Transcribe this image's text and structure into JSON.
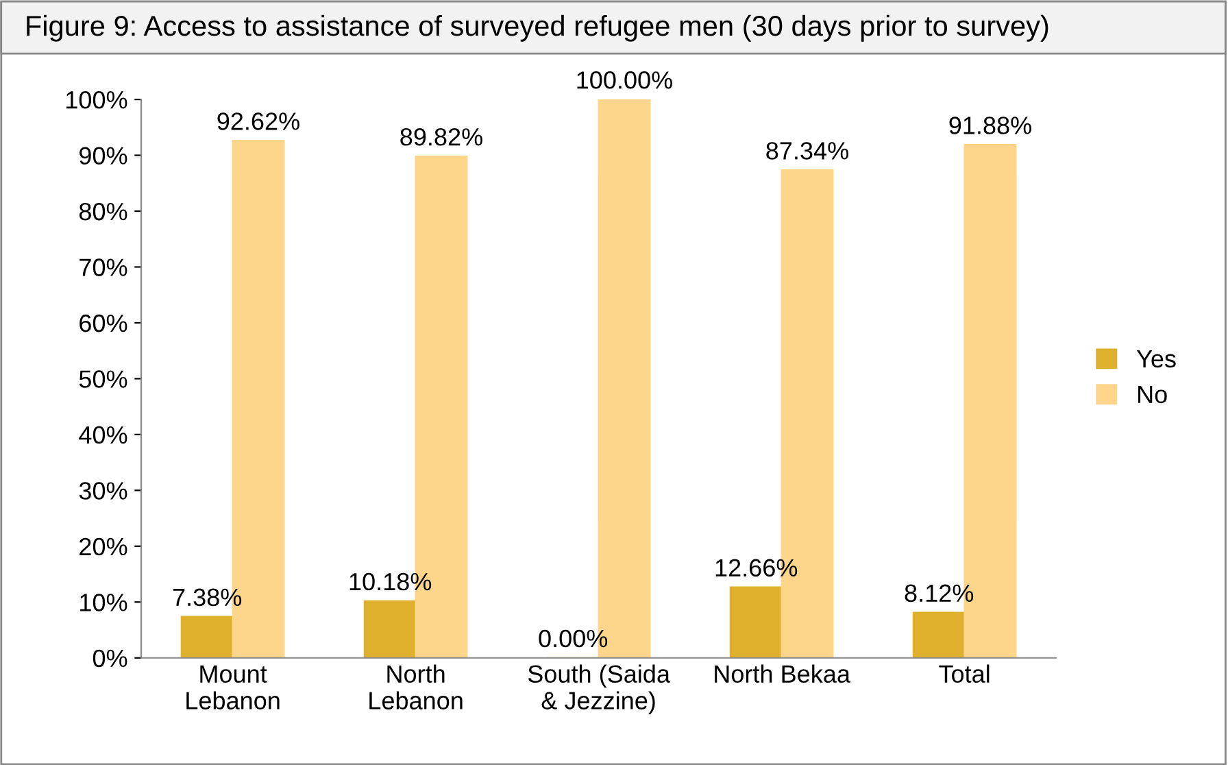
{
  "chart_data": {
    "type": "bar",
    "title": "Figure 9: Access to assistance of surveyed refugee men (30 days prior to survey)",
    "categories": [
      "Mount\nLebanon",
      "North\nLebanon",
      "South (Saida\n& Jezzine)",
      "North Bekaa",
      "Total"
    ],
    "series": [
      {
        "name": "Yes",
        "color": "#deb02c",
        "values": [
          7.38,
          10.18,
          0.0,
          12.66,
          8.12
        ],
        "value_labels": [
          "7.38%",
          "10.18%",
          "0.00%",
          "12.66%",
          "8.12%"
        ]
      },
      {
        "name": "No",
        "color": "#fdd58b",
        "values": [
          92.62,
          89.82,
          100.0,
          87.34,
          91.88
        ],
        "value_labels": [
          "92.62%",
          "89.82%",
          "100.00%",
          "87.34%",
          "91.88%"
        ]
      }
    ],
    "ylim": [
      0,
      100
    ],
    "yticks": [
      {
        "value": 0,
        "label": "0%"
      },
      {
        "value": 10,
        "label": "10%"
      },
      {
        "value": 20,
        "label": "20%"
      },
      {
        "value": 30,
        "label": "30%"
      },
      {
        "value": 40,
        "label": "40%"
      },
      {
        "value": 50,
        "label": "50%"
      },
      {
        "value": 60,
        "label": "60%"
      },
      {
        "value": 70,
        "label": "70%"
      },
      {
        "value": 80,
        "label": "80%"
      },
      {
        "value": 90,
        "label": "90%"
      },
      {
        "value": 100,
        "label": "100%"
      }
    ],
    "grid": false,
    "legend": "right"
  }
}
